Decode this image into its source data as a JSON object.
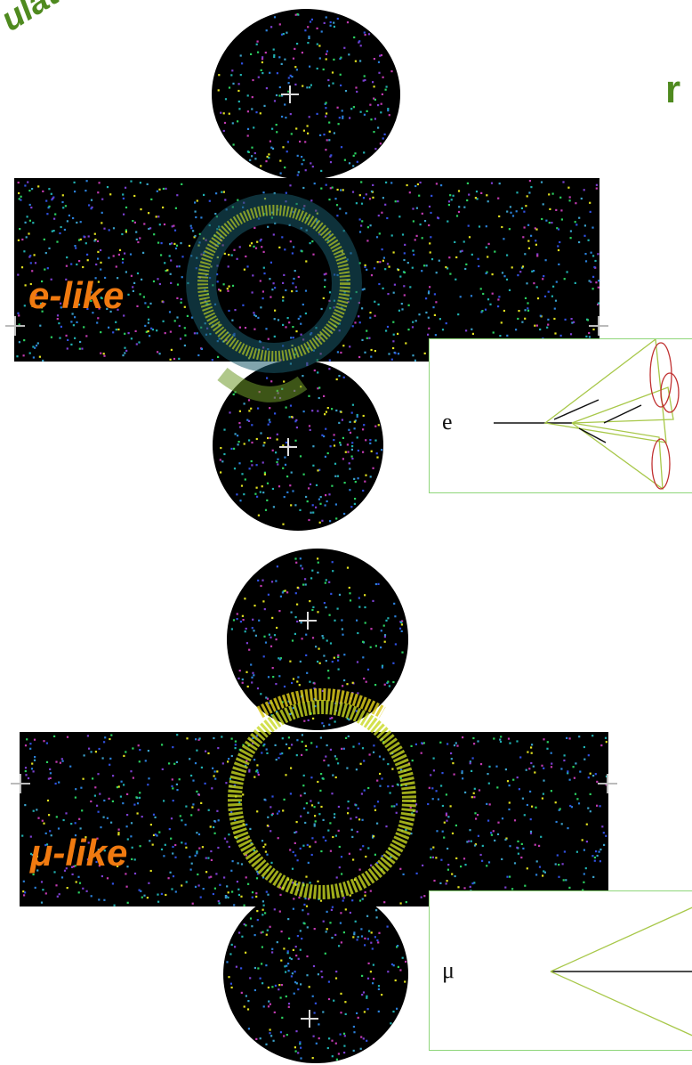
{
  "title_fragment": "ulation",
  "title_right_fragment": "r",
  "events": [
    {
      "label": "e-like",
      "particle": "e",
      "ring_color": "#c8d822",
      "ring_character": "fuzzy"
    },
    {
      "label": "μ-like",
      "particle": "μ",
      "ring_color": "#c8d822",
      "ring_character": "sharp"
    }
  ],
  "colors": {
    "title_green": "#4f8a1f",
    "label_orange": "#f07a10",
    "detector_background": "#000000",
    "cone_green": "#a8c84a",
    "ellipse_red": "#c03030",
    "box_border": "#8fd67a"
  },
  "icons": [
    "crosshair-icon"
  ]
}
